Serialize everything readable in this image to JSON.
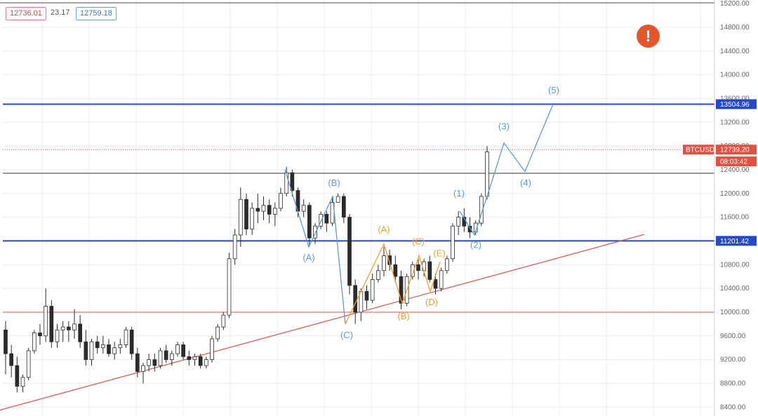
{
  "header": {
    "bid": "12736.01",
    "spread": "23.17",
    "ask": "12759.18"
  },
  "alert_icon": "exclamation-icon",
  "colors": {
    "up": "#ffffff",
    "down": "#2b2b2b",
    "wick": "#2b2b2b",
    "blue_level": "#2748c8",
    "wave_blue": "#5b9bd5",
    "wave_orange": "#f0a030",
    "trend_red": "#d9534f",
    "support_red": "#d9534f",
    "tag_red": "#e0513f",
    "tag_blue": "#2748c8"
  },
  "chart_data": {
    "type": "candlestick",
    "symbol": "BTCUSD",
    "y_ticks": [
      15200,
      14800,
      14400,
      14000,
      13600,
      13200,
      12800,
      12400,
      12000,
      11600,
      11200,
      10800,
      10400,
      10000,
      9600,
      9200,
      8800,
      8400
    ],
    "ylim": [
      8250,
      15260
    ],
    "price_tags": [
      {
        "label": "13504.96",
        "value": 13504.96,
        "color": "#2748c8"
      },
      {
        "label": "12739.20",
        "value": 12739.2,
        "color": "#e0513f",
        "prefix": "BTCUSD"
      },
      {
        "label": "08:03:42",
        "value": 12540,
        "color": "#e0513f"
      },
      {
        "label": "11201.42",
        "value": 11201.42,
        "color": "#2748c8"
      }
    ],
    "levels": [
      {
        "value": 13504.96,
        "color": "#2748c8",
        "width": 2
      },
      {
        "value": 12340,
        "color": "#333333",
        "width": 1
      },
      {
        "value": 11201.42,
        "color": "#2748c8",
        "width": 2
      },
      {
        "value": 10000,
        "color": "#d9534f",
        "width": 1
      }
    ],
    "trendline": {
      "from": [
        0,
        8350
      ],
      "to": [
        918,
        11310
      ],
      "color": "#d9534f"
    },
    "candles": [
      [
        9700,
        9850,
        8950,
        9300
      ],
      [
        9300,
        9450,
        8900,
        9100
      ],
      [
        9100,
        9250,
        8650,
        8750
      ],
      [
        8750,
        8950,
        8650,
        8900
      ],
      [
        8900,
        9400,
        8850,
        9350
      ],
      [
        9350,
        9700,
        9300,
        9650
      ],
      [
        9650,
        9800,
        9450,
        9600
      ],
      [
        9600,
        10400,
        9500,
        10100
      ],
      [
        10100,
        10200,
        9400,
        9500
      ],
      [
        9500,
        9800,
        9400,
        9700
      ],
      [
        9700,
        9850,
        9500,
        9750
      ],
      [
        9750,
        9850,
        9500,
        9700
      ],
      [
        9700,
        10050,
        9550,
        9800
      ],
      [
        9800,
        9950,
        9400,
        9500
      ],
      [
        9500,
        9700,
        9100,
        9200
      ],
      [
        9200,
        9550,
        9100,
        9500
      ],
      [
        9500,
        9600,
        9300,
        9400
      ],
      [
        9400,
        9600,
        9300,
        9450
      ],
      [
        9450,
        9550,
        9250,
        9300
      ],
      [
        9300,
        9500,
        9200,
        9400
      ],
      [
        9400,
        9550,
        9300,
        9450
      ],
      [
        9450,
        9750,
        9400,
        9700
      ],
      [
        9700,
        9750,
        9200,
        9300
      ],
      [
        9300,
        9400,
        8900,
        9000
      ],
      [
        9000,
        9150,
        8800,
        9100
      ],
      [
        9100,
        9300,
        9000,
        9200
      ],
      [
        9200,
        9300,
        9000,
        9100
      ],
      [
        9100,
        9400,
        9050,
        9350
      ],
      [
        9350,
        9450,
        9150,
        9200
      ],
      [
        9200,
        9350,
        9100,
        9300
      ],
      [
        9300,
        9500,
        9250,
        9450
      ],
      [
        9450,
        9500,
        9200,
        9250
      ],
      [
        9250,
        9350,
        9100,
        9200
      ],
      [
        9200,
        9300,
        9100,
        9250
      ],
      [
        9250,
        9300,
        9050,
        9100
      ],
      [
        9100,
        9250,
        9050,
        9200
      ],
      [
        9200,
        9600,
        9150,
        9550
      ],
      [
        9550,
        9800,
        9500,
        9750
      ],
      [
        9750,
        10000,
        9700,
        9950
      ],
      [
        9950,
        11000,
        9900,
        10900
      ],
      [
        10900,
        11400,
        10800,
        11300
      ],
      [
        11300,
        12100,
        11100,
        11900
      ],
      [
        11900,
        12000,
        11300,
        11400
      ],
      [
        11400,
        11850,
        11300,
        11750
      ],
      [
        11750,
        12000,
        11500,
        11700
      ],
      [
        11700,
        11950,
        11550,
        11800
      ],
      [
        11800,
        11900,
        11500,
        11650
      ],
      [
        11650,
        11850,
        11450,
        11750
      ],
      [
        11750,
        12100,
        11700,
        12000
      ],
      [
        12000,
        12450,
        11950,
        12350
      ],
      [
        12350,
        12400,
        11950,
        12050
      ],
      [
        12050,
        12100,
        11600,
        11700
      ],
      [
        11700,
        11900,
        11600,
        11800
      ],
      [
        11800,
        11850,
        11100,
        11250
      ],
      [
        11250,
        11500,
        11150,
        11450
      ],
      [
        11450,
        11700,
        11400,
        11650
      ],
      [
        11650,
        11700,
        11350,
        11500
      ],
      [
        11500,
        11950,
        11450,
        11850
      ],
      [
        11850,
        12000,
        11850,
        11950
      ],
      [
        11950,
        12000,
        11500,
        11600
      ],
      [
        11600,
        11650,
        10300,
        10450
      ],
      [
        10450,
        10550,
        9800,
        10000
      ],
      [
        10000,
        10400,
        9850,
        10350
      ],
      [
        10350,
        10450,
        10050,
        10200
      ],
      [
        10200,
        10650,
        10150,
        10550
      ],
      [
        10550,
        10800,
        10500,
        10700
      ],
      [
        10700,
        11100,
        10600,
        10950
      ],
      [
        10950,
        11050,
        10700,
        10800
      ],
      [
        10800,
        10950,
        10500,
        10600
      ],
      [
        10600,
        10700,
        10050,
        10150
      ],
      [
        10150,
        10650,
        10100,
        10600
      ],
      [
        10600,
        10850,
        10550,
        10800
      ],
      [
        10800,
        10900,
        10550,
        10700
      ],
      [
        10700,
        10900,
        10600,
        10850
      ],
      [
        10850,
        10950,
        10500,
        10550
      ],
      [
        10550,
        10650,
        10300,
        10400
      ],
      [
        10400,
        10750,
        10350,
        10700
      ],
      [
        10700,
        10950,
        10650,
        10900
      ],
      [
        10900,
        11500,
        10850,
        11450
      ],
      [
        11450,
        11700,
        11300,
        11600
      ],
      [
        11600,
        11750,
        11350,
        11450
      ],
      [
        11450,
        11600,
        11250,
        11350
      ],
      [
        11350,
        11550,
        11300,
        11500
      ],
      [
        11500,
        12000,
        11450,
        11950
      ],
      [
        11950,
        12800,
        11900,
        12700
      ]
    ],
    "waves_blue": [
      {
        "points": [
          [
            406,
            12400
          ],
          [
            440,
            11100
          ],
          [
            474,
            11950
          ],
          [
            492,
            9800
          ]
        ]
      },
      {
        "points": [
          [
            655,
            11700
          ],
          [
            676,
            11300
          ],
          [
            698,
            12100
          ],
          [
            718,
            12850
          ],
          [
            748,
            12370
          ],
          [
            788,
            13504.96
          ]
        ]
      }
    ],
    "waves_orange": [
      {
        "points": [
          [
            492,
            9800
          ],
          [
            547,
            11150
          ],
          [
            573,
            10150
          ],
          [
            597,
            10950
          ],
          [
            613,
            10350
          ],
          [
            627,
            10850
          ]
        ]
      }
    ],
    "wave_labels_blue": [
      {
        "text": "(B)",
        "x": 476,
        "price": 12130
      },
      {
        "text": "(A)",
        "x": 440,
        "price": 10870
      },
      {
        "text": "(C)",
        "x": 494,
        "price": 9560
      },
      {
        "text": "(1)",
        "x": 654,
        "price": 11950
      },
      {
        "text": "(2)",
        "x": 678,
        "price": 11080
      },
      {
        "text": "(3)",
        "x": 718,
        "price": 13080
      },
      {
        "text": "(4)",
        "x": 749,
        "price": 12130
      },
      {
        "text": "(5)",
        "x": 789,
        "price": 13690
      }
    ],
    "wave_labels_orange": [
      {
        "text": "(A)",
        "x": 547,
        "price": 11340
      },
      {
        "text": "(C)",
        "x": 596,
        "price": 11140
      },
      {
        "text": "(E)",
        "x": 626,
        "price": 10940
      },
      {
        "text": "(B)",
        "x": 575,
        "price": 9880
      },
      {
        "text": "(D)",
        "x": 615,
        "price": 10120
      }
    ]
  }
}
